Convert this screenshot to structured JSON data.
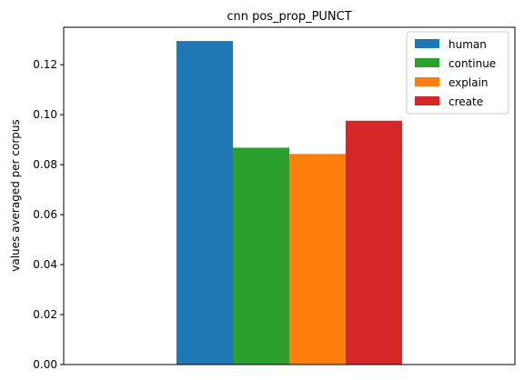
{
  "chart_data": {
    "type": "bar",
    "title": "cnn pos_prop_PUNCT",
    "xlabel": "",
    "ylabel": "values averaged per corpus",
    "ylim": [
      0,
      0.135
    ],
    "yticks": [
      "0.00",
      "0.02",
      "0.04",
      "0.06",
      "0.08",
      "0.10",
      "0.12"
    ],
    "legend_position": "top-right",
    "grid": false,
    "series": [
      {
        "name": "human",
        "value": 0.1295,
        "color": "#1f77b4"
      },
      {
        "name": "continue",
        "value": 0.0868,
        "color": "#2ca02c"
      },
      {
        "name": "explain",
        "value": 0.0843,
        "color": "#ff7f0e"
      },
      {
        "name": "create",
        "value": 0.0976,
        "color": "#d62728"
      }
    ]
  }
}
